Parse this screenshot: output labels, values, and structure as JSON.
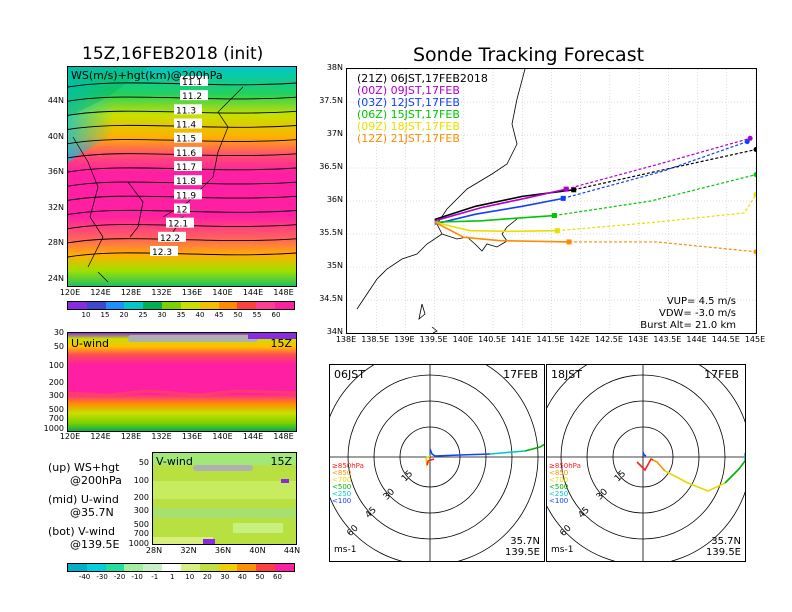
{
  "ws_panel": {
    "title": "15Z,16FEB2018 (init)",
    "label": "WS(m/s)+hgt(km)@200hPa",
    "contours": [
      "11.1",
      "11.2",
      "11.3",
      "11.4",
      "11.5",
      "11.6",
      "11.7",
      "11.8",
      "11.9",
      "12",
      "12.1",
      "12.2",
      "12.3"
    ],
    "lat_ticks": [
      "44N",
      "40N",
      "36N",
      "32N",
      "28N",
      "24N"
    ],
    "lon_ticks": [
      "120E",
      "124E",
      "128E",
      "132E",
      "136E",
      "140E",
      "144E",
      "148E"
    ],
    "colorbar": [
      "10",
      "15",
      "20",
      "25",
      "30",
      "35",
      "40",
      "45",
      "50",
      "55",
      "60"
    ],
    "colorbar_colors": [
      "#8a2be2",
      "#3f48cc",
      "#1e90ff",
      "#00c8c8",
      "#00b050",
      "#7cd000",
      "#c8e000",
      "#f0c000",
      "#ff8c00",
      "#ff4040",
      "#ff3c96",
      "#ff1fa2"
    ]
  },
  "u_panel": {
    "label": "U-wind",
    "time": "15Z",
    "p_ticks": [
      "30",
      "50",
      "100",
      "200",
      "300",
      "500",
      "700",
      "1000"
    ],
    "lon_ticks": [
      "120E",
      "124E",
      "128E",
      "132E",
      "136E",
      "140E",
      "144E",
      "148E"
    ]
  },
  "v_panel": {
    "label": "V-wind",
    "time": "15Z",
    "p_ticks": [
      "50",
      "100",
      "200",
      "300",
      "500",
      "700",
      "1000"
    ],
    "lat_ticks": [
      "28N",
      "32N",
      "36N",
      "40N",
      "44N"
    ],
    "colorbar": [
      "-40",
      "-30",
      "-20",
      "-10",
      "-1",
      "1",
      "10",
      "20",
      "30",
      "40",
      "50",
      "60"
    ],
    "colorbar_colors": [
      "#00b0c8",
      "#00d0e0",
      "#20e0a0",
      "#a0f0a0",
      "#c8f0c8",
      "#ffffff",
      "#d8f080",
      "#c0e040",
      "#f0d000",
      "#ff9000",
      "#ff4040",
      "#ff1fa2"
    ]
  },
  "legend_notes": {
    "up1": "(up) WS+hgt",
    "up2": "@200hPa",
    "mid1": "(mid) U-wind",
    "mid2": "@35.7N",
    "bot1": "(bot) V-wind",
    "bot2": "@139.5E"
  },
  "track": {
    "title": "Sonde Tracking Forecast",
    "lat_ticks": [
      "38N",
      "37.5N",
      "37N",
      "36.5N",
      "36N",
      "35.5N",
      "35N",
      "34.5N",
      "34N"
    ],
    "lon_ticks": [
      "138E",
      "138.5E",
      "139E",
      "139.5E",
      "140E",
      "140.5E",
      "141E",
      "141.5E",
      "142E",
      "142.5E",
      "143E",
      "143.5E",
      "144E",
      "144.5E",
      "145E"
    ],
    "vup": "VUP= 4.5 m/s",
    "vdw": "VDW= -3.0 m/s",
    "burst": "Burst Alt= 21.0 km"
  },
  "chart_data": {
    "type": "line",
    "title": "Sonde Tracking Forecast",
    "xlabel": "",
    "ylabel": "",
    "xlim": [
      138,
      145
    ],
    "ylim": [
      34,
      38
    ],
    "series": [
      {
        "name": "(21Z) 06JST,17FEB2018",
        "color": "#000000",
        "points": [
          [
            139.5,
            35.72
          ],
          [
            140.2,
            35.92
          ],
          [
            141.0,
            36.07
          ],
          [
            141.88,
            36.17
          ]
        ],
        "dashed": [
          [
            141.88,
            36.17
          ],
          [
            143.3,
            36.45
          ],
          [
            145.0,
            36.78
          ]
        ]
      },
      {
        "name": "(00Z) 09JST,17FEB",
        "color": "#b000d0",
        "points": [
          [
            139.5,
            35.7
          ],
          [
            140.3,
            35.9
          ],
          [
            141.1,
            36.05
          ],
          [
            141.75,
            36.18
          ]
        ],
        "dashed": [
          [
            141.75,
            36.18
          ],
          [
            143.3,
            36.55
          ],
          [
            144.9,
            36.95
          ]
        ]
      },
      {
        "name": "(03Z) 12JST,17FEB",
        "color": "#1040ff",
        "points": [
          [
            139.5,
            35.65
          ],
          [
            140.2,
            35.8
          ],
          [
            141.0,
            35.92
          ],
          [
            141.7,
            36.04
          ]
        ],
        "dashed": [
          [
            141.7,
            36.04
          ],
          [
            143.4,
            36.45
          ],
          [
            144.85,
            36.9
          ]
        ]
      },
      {
        "name": "(06Z) 15JST,17FEB",
        "color": "#00c800",
        "points": [
          [
            139.5,
            35.68
          ],
          [
            140.3,
            35.7
          ],
          [
            140.9,
            35.74
          ],
          [
            141.55,
            35.78
          ]
        ],
        "dashed": [
          [
            141.55,
            35.78
          ],
          [
            143.2,
            36.0
          ],
          [
            145.0,
            36.4
          ]
        ]
      },
      {
        "name": "(09Z) 18JST,17FEB",
        "color": "#e8e000",
        "points": [
          [
            139.5,
            35.68
          ],
          [
            140.1,
            35.55
          ],
          [
            140.8,
            35.54
          ],
          [
            141.6,
            35.55
          ]
        ],
        "dashed": [
          [
            141.6,
            35.55
          ],
          [
            143.3,
            35.68
          ],
          [
            144.8,
            35.82
          ],
          [
            145.0,
            36.1
          ]
        ]
      },
      {
        "name": "(12Z) 21JST,17FEB",
        "color": "#ff8c00",
        "points": [
          [
            139.5,
            35.68
          ],
          [
            140.0,
            35.45
          ],
          [
            140.6,
            35.4
          ],
          [
            141.8,
            35.38
          ]
        ],
        "dashed": [
          [
            141.8,
            35.38
          ],
          [
            143.3,
            35.38
          ],
          [
            145.0,
            35.23
          ]
        ]
      }
    ]
  },
  "polar_left": {
    "time": "06JST",
    "date": "17FEB",
    "rings": [
      "15",
      "30",
      "45",
      "60"
    ],
    "levels": [
      "≥850hPa",
      "<850",
      "<700",
      "<500",
      "<250",
      "<100"
    ],
    "level_colors": [
      "#ff2020",
      "#ff9000",
      "#e8d800",
      "#00b000",
      "#00c8c8",
      "#1040ff"
    ],
    "lat": "35.7N",
    "lon": "139.5E",
    "unit": "ms-1"
  },
  "polar_right": {
    "time": "18JST",
    "date": "17FEB",
    "rings": [
      "15",
      "30",
      "45",
      "60"
    ],
    "levels": [
      "≥850hPa",
      "<850",
      "<700",
      "<500",
      "<250",
      "<100"
    ],
    "level_colors": [
      "#ff2020",
      "#ff9000",
      "#e8d800",
      "#00b000",
      "#00c8c8",
      "#1040ff"
    ],
    "lat": "35.7N",
    "lon": "139.5E",
    "unit": "ms-1"
  }
}
